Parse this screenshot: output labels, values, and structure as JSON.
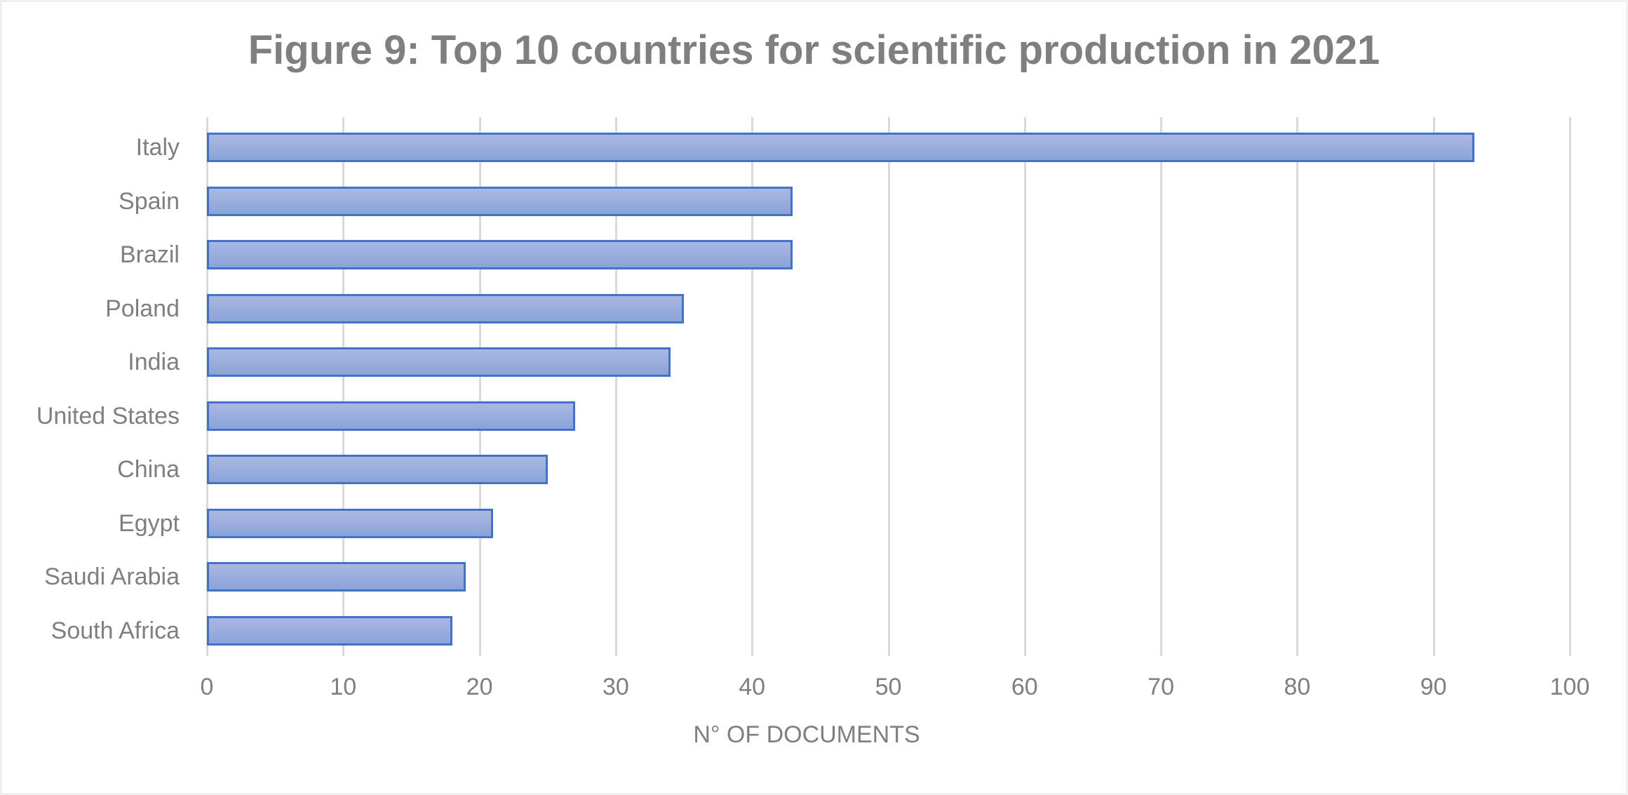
{
  "chart_data": {
    "type": "bar",
    "orientation": "horizontal",
    "title": "Figure 9: Top 10 countries for scientific production in 2021",
    "xlabel": "N° OF DOCUMENTS",
    "ylabel": "",
    "categories": [
      "Italy",
      "Spain",
      "Brazil",
      "Poland",
      "India",
      "United States",
      "China",
      "Egypt",
      "Saudi Arabia",
      "South Africa"
    ],
    "values": [
      93,
      43,
      43,
      35,
      34,
      27,
      25,
      21,
      19,
      18
    ],
    "xlim": [
      0,
      100
    ],
    "x_ticks": [
      "0",
      "10",
      "20",
      "30",
      "40",
      "50",
      "60",
      "70",
      "80",
      "90",
      "100"
    ],
    "grid": "vertical",
    "legend": "none",
    "colors": {
      "bar_fill": "#9aaedd",
      "bar_border": "#4472c4",
      "gridline": "#d9d9d9",
      "text": "#7f7f7f"
    }
  }
}
